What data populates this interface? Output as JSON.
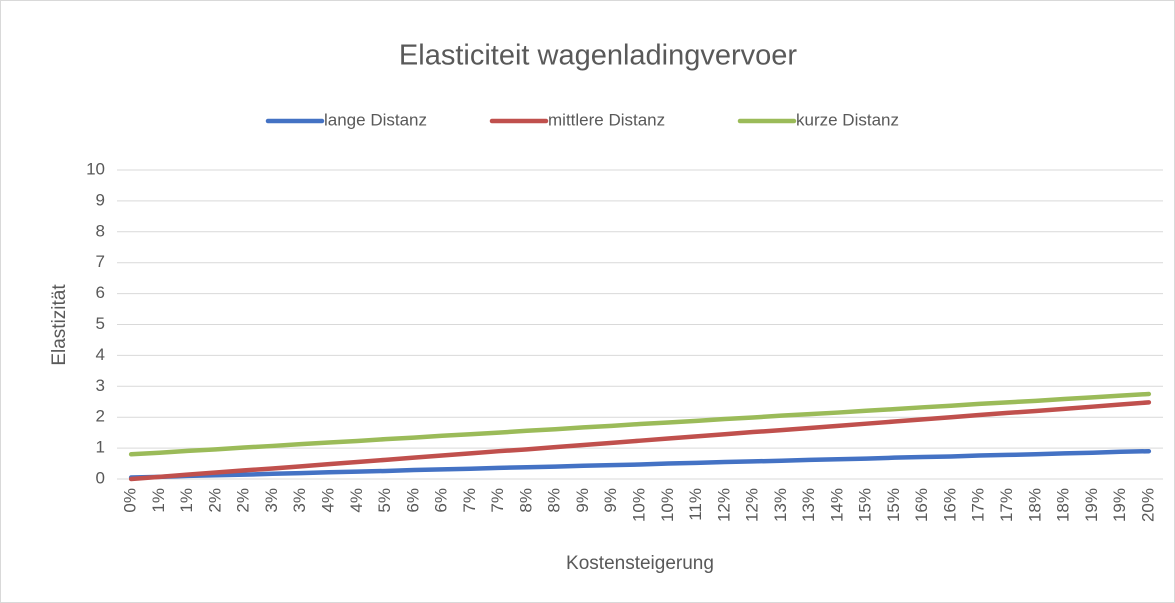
{
  "chart_data": {
    "type": "line",
    "title": "Elasticiteit wagenladingvervoer",
    "x_label": "Kostensteigerung",
    "y_label": "Elastizität",
    "categories": [
      "0%",
      "1%",
      "1%",
      "2%",
      "2%",
      "3%",
      "3%",
      "4%",
      "4%",
      "5%",
      "6%",
      "6%",
      "7%",
      "7%",
      "8%",
      "8%",
      "9%",
      "9%",
      "10%",
      "10%",
      "11%",
      "12%",
      "12%",
      "13%",
      "13%",
      "14%",
      "15%",
      "15%",
      "16%",
      "16%",
      "17%",
      "17%",
      "18%",
      "18%",
      "19%",
      "19%",
      "20%"
    ],
    "series": [
      {
        "name": "lange Distanz",
        "color": "#4472c4",
        "values": [
          0.05,
          0.07,
          0.1,
          0.12,
          0.14,
          0.17,
          0.19,
          0.22,
          0.24,
          0.26,
          0.29,
          0.31,
          0.33,
          0.36,
          0.38,
          0.4,
          0.43,
          0.45,
          0.47,
          0.5,
          0.52,
          0.55,
          0.57,
          0.59,
          0.62,
          0.64,
          0.66,
          0.69,
          0.71,
          0.73,
          0.76,
          0.78,
          0.8,
          0.83,
          0.85,
          0.88,
          0.9
        ]
      },
      {
        "name": "mittlere Distanz",
        "color": "#c0504d",
        "values": [
          0,
          0.07,
          0.14,
          0.21,
          0.28,
          0.34,
          0.41,
          0.48,
          0.55,
          0.62,
          0.69,
          0.76,
          0.83,
          0.9,
          0.96,
          1.03,
          1.1,
          1.17,
          1.24,
          1.31,
          1.38,
          1.45,
          1.52,
          1.58,
          1.65,
          1.72,
          1.79,
          1.86,
          1.93,
          2.0,
          2.07,
          2.14,
          2.2,
          2.27,
          2.34,
          2.41,
          2.48
        ]
      },
      {
        "name": "kurze Distanz",
        "color": "#9bbb59",
        "values": [
          0.8,
          0.85,
          0.91,
          0.96,
          1.02,
          1.07,
          1.13,
          1.18,
          1.23,
          1.29,
          1.34,
          1.4,
          1.45,
          1.5,
          1.56,
          1.61,
          1.67,
          1.72,
          1.78,
          1.83,
          1.88,
          1.94,
          1.99,
          2.05,
          2.1,
          2.15,
          2.21,
          2.26,
          2.32,
          2.37,
          2.43,
          2.48,
          2.53,
          2.59,
          2.64,
          2.7,
          2.75
        ]
      }
    ],
    "ylim": [
      0,
      10
    ],
    "yticks": [
      0,
      1,
      2,
      3,
      4,
      5,
      6,
      7,
      8,
      9,
      10
    ],
    "grid": true,
    "legend": "top"
  }
}
